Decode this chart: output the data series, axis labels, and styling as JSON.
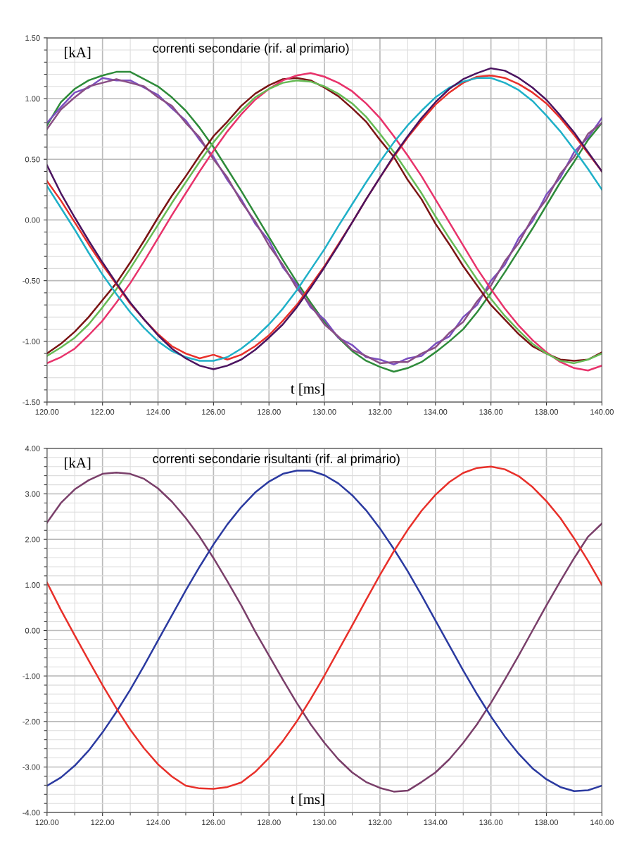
{
  "chart_data": [
    {
      "type": "line",
      "title": "correnti secondarie (rif. al primario)",
      "xlabel": "t [ms]",
      "ylabel": "[kA]",
      "grid": true,
      "marker": "none",
      "line_style": "solid",
      "xlim": [
        120,
        140
      ],
      "ylim": [
        -1.5,
        1.5
      ],
      "xticks": [
        {
          "value": 120,
          "label": "120.00"
        },
        {
          "value": 121,
          "label": null
        },
        {
          "value": 122,
          "label": "122.00"
        },
        {
          "value": 123,
          "label": null
        },
        {
          "value": 124,
          "label": "124.00"
        },
        {
          "value": 125,
          "label": null
        },
        {
          "value": 126,
          "label": "126.00"
        },
        {
          "value": 127,
          "label": null
        },
        {
          "value": 128,
          "label": "128.00"
        },
        {
          "value": 129,
          "label": null
        },
        {
          "value": 130,
          "label": "130.00"
        },
        {
          "value": 131,
          "label": null
        },
        {
          "value": 132,
          "label": "132.00"
        },
        {
          "value": 133,
          "label": null
        },
        {
          "value": 134,
          "label": "134.00"
        },
        {
          "value": 135,
          "label": null
        },
        {
          "value": 136,
          "label": "136.00"
        },
        {
          "value": 137,
          "label": null
        },
        {
          "value": 138,
          "label": "138.00"
        },
        {
          "value": 139,
          "label": null
        },
        {
          "value": 140,
          "label": "140.00"
        }
      ],
      "yticks": [
        {
          "value": -1.5,
          "label": "-1.50"
        },
        {
          "value": -1.4,
          "label": null
        },
        {
          "value": -1.3,
          "label": null
        },
        {
          "value": -1.2,
          "label": null
        },
        {
          "value": -1.1,
          "label": null
        },
        {
          "value": -1.0,
          "label": "-1.00"
        },
        {
          "value": -0.9,
          "label": null
        },
        {
          "value": -0.8,
          "label": null
        },
        {
          "value": -0.7,
          "label": null
        },
        {
          "value": -0.6,
          "label": null
        },
        {
          "value": -0.5,
          "label": "-0.50"
        },
        {
          "value": -0.4,
          "label": null
        },
        {
          "value": -0.3,
          "label": null
        },
        {
          "value": -0.2,
          "label": null
        },
        {
          "value": -0.1,
          "label": null
        },
        {
          "value": 0,
          "label": "0.00"
        },
        {
          "value": 0.1,
          "label": null
        },
        {
          "value": 0.2,
          "label": null
        },
        {
          "value": 0.3,
          "label": null
        },
        {
          "value": 0.4,
          "label": null
        },
        {
          "value": 0.5,
          "label": "0.50"
        },
        {
          "value": 0.6,
          "label": null
        },
        {
          "value": 0.7,
          "label": null
        },
        {
          "value": 0.8,
          "label": null
        },
        {
          "value": 0.9,
          "label": null
        },
        {
          "value": 1.0,
          "label": "1.00"
        },
        {
          "value": 1.1,
          "label": null
        },
        {
          "value": 1.2,
          "label": null
        },
        {
          "value": 1.3,
          "label": null
        },
        {
          "value": 1.4,
          "label": null
        },
        {
          "value": 1.5,
          "label": "1.50"
        }
      ],
      "x": [
        120,
        120.5,
        121,
        121.5,
        122,
        122.5,
        123,
        123.5,
        124,
        124.5,
        125,
        125.5,
        126,
        126.5,
        127,
        127.5,
        128,
        128.5,
        129,
        129.5,
        130,
        130.5,
        131,
        131.5,
        132,
        132.5,
        133,
        133.5,
        134,
        134.5,
        135,
        135.5,
        136,
        136.5,
        137,
        137.5,
        138,
        138.5,
        139,
        139.5,
        140
      ],
      "series": [
        {
          "color": "#2e8b3a",
          "values": [
            0.78,
            0.97,
            1.08,
            1.15,
            1.19,
            1.22,
            1.22,
            1.16,
            1.1,
            1.01,
            0.9,
            0.76,
            0.6,
            0.42,
            0.24,
            0.05,
            -0.14,
            -0.33,
            -0.51,
            -0.68,
            -0.84,
            -0.97,
            -1.08,
            -1.16,
            -1.21,
            -1.25,
            -1.22,
            -1.17,
            -1.09,
            -1.0,
            -0.9,
            -0.76,
            -0.6,
            -0.43,
            -0.25,
            -0.07,
            0.12,
            0.31,
            0.48,
            0.66,
            0.8
          ]
        },
        {
          "color": "#7b4fc0",
          "values": [
            0.8,
            0.93,
            1.05,
            1.09,
            1.17,
            1.15,
            1.15,
            1.09,
            1.03,
            0.92,
            0.82,
            0.66,
            0.52,
            0.33,
            0.17,
            -0.03,
            -0.17,
            -0.39,
            -0.53,
            -0.72,
            -0.82,
            -0.97,
            -1.03,
            -1.13,
            -1.15,
            -1.19,
            -1.14,
            -1.12,
            -1.02,
            -0.96,
            -0.8,
            -0.7,
            -0.5,
            -0.37,
            -0.15,
            -0.01,
            0.21,
            0.35,
            0.56,
            0.68,
            0.84
          ]
        },
        {
          "color": "#8a4f86",
          "values": [
            0.75,
            0.91,
            1.01,
            1.1,
            1.13,
            1.16,
            1.13,
            1.1,
            1.01,
            0.94,
            0.8,
            0.68,
            0.5,
            0.35,
            0.15,
            -0.01,
            -0.21,
            -0.37,
            -0.56,
            -0.7,
            -0.86,
            -0.96,
            -1.07,
            -1.12,
            -1.18,
            -1.17,
            -1.17,
            -1.1,
            -1.05,
            -0.93,
            -0.84,
            -0.67,
            -0.54,
            -0.34,
            -0.19,
            0.02,
            0.17,
            0.38,
            0.52,
            0.71,
            0.8
          ]
        },
        {
          "color": "#7a1414",
          "values": [
            -1.1,
            -1.02,
            -0.92,
            -0.8,
            -0.66,
            -0.52,
            -0.35,
            -0.17,
            0.02,
            0.2,
            0.36,
            0.53,
            0.69,
            0.81,
            0.94,
            1.04,
            1.11,
            1.16,
            1.17,
            1.15,
            1.09,
            1.02,
            0.92,
            0.81,
            0.66,
            0.52,
            0.33,
            0.17,
            -0.03,
            -0.2,
            -0.38,
            -0.54,
            -0.7,
            -0.82,
            -0.94,
            -1.04,
            -1.1,
            -1.15,
            -1.16,
            -1.15,
            -1.09
          ]
        },
        {
          "color": "#e8336b",
          "values": [
            -1.18,
            -1.13,
            -1.06,
            -0.95,
            -0.83,
            -0.68,
            -0.52,
            -0.34,
            -0.15,
            0.04,
            0.22,
            0.4,
            0.57,
            0.73,
            0.87,
            0.99,
            1.08,
            1.15,
            1.19,
            1.21,
            1.18,
            1.13,
            1.06,
            0.96,
            0.84,
            0.69,
            0.53,
            0.36,
            0.17,
            -0.02,
            -0.21,
            -0.4,
            -0.57,
            -0.73,
            -0.87,
            -0.99,
            -1.09,
            -1.17,
            -1.22,
            -1.24,
            -1.2
          ]
        },
        {
          "color": "#66bb55",
          "values": [
            -1.12,
            -1.05,
            -0.97,
            -0.86,
            -0.72,
            -0.57,
            -0.4,
            -0.22,
            -0.04,
            0.14,
            0.31,
            0.48,
            0.64,
            0.78,
            0.9,
            1.01,
            1.08,
            1.13,
            1.15,
            1.14,
            1.1,
            1.04,
            0.96,
            0.85,
            0.71,
            0.56,
            0.39,
            0.22,
            0.03,
            -0.15,
            -0.32,
            -0.49,
            -0.65,
            -0.79,
            -0.91,
            -1.02,
            -1.1,
            -1.16,
            -1.18,
            -1.15,
            -1.1
          ]
        },
        {
          "color": "#e8302a",
          "values": [
            0.32,
            0.16,
            -0.02,
            -0.2,
            -0.37,
            -0.53,
            -0.69,
            -0.82,
            -0.94,
            -1.04,
            -1.1,
            -1.14,
            -1.11,
            -1.15,
            -1.11,
            -1.04,
            -0.95,
            -0.83,
            -0.7,
            -0.54,
            -0.38,
            -0.2,
            -0.02,
            0.17,
            0.35,
            0.52,
            0.68,
            0.82,
            0.95,
            1.05,
            1.13,
            1.18,
            1.19,
            1.17,
            1.12,
            1.05,
            0.96,
            0.84,
            0.7,
            0.55,
            0.4
          ]
        },
        {
          "color": "#1fb0c8",
          "values": [
            0.28,
            0.1,
            -0.08,
            -0.27,
            -0.45,
            -0.61,
            -0.76,
            -0.89,
            -1.0,
            -1.08,
            -1.13,
            -1.16,
            -1.16,
            -1.13,
            -1.06,
            -0.97,
            -0.86,
            -0.73,
            -0.58,
            -0.41,
            -0.24,
            -0.05,
            0.13,
            0.31,
            0.48,
            0.64,
            0.78,
            0.9,
            1.01,
            1.09,
            1.14,
            1.17,
            1.17,
            1.13,
            1.07,
            0.98,
            0.86,
            0.73,
            0.58,
            0.42,
            0.25
          ]
        },
        {
          "color": "#4b1460",
          "values": [
            0.45,
            0.22,
            0.02,
            -0.17,
            -0.35,
            -0.52,
            -0.68,
            -0.82,
            -0.95,
            -1.06,
            -1.14,
            -1.2,
            -1.23,
            -1.2,
            -1.15,
            -1.07,
            -0.97,
            -0.86,
            -0.72,
            -0.56,
            -0.39,
            -0.21,
            -0.02,
            0.17,
            0.35,
            0.53,
            0.69,
            0.84,
            0.97,
            1.08,
            1.16,
            1.21,
            1.25,
            1.23,
            1.17,
            1.09,
            0.99,
            0.86,
            0.72,
            0.56,
            0.4
          ]
        }
      ]
    },
    {
      "type": "line",
      "title": "correnti secondarie risultanti (rif. al primario)",
      "xlabel": "t [ms]",
      "ylabel": "[kA]",
      "grid": true,
      "marker": "none",
      "line_style": "solid",
      "xlim": [
        120,
        140
      ],
      "ylim": [
        -4,
        4
      ],
      "xticks": [
        {
          "value": 120,
          "label": "120.00"
        },
        {
          "value": 121,
          "label": null
        },
        {
          "value": 122,
          "label": "122.00"
        },
        {
          "value": 123,
          "label": null
        },
        {
          "value": 124,
          "label": "124.00"
        },
        {
          "value": 125,
          "label": null
        },
        {
          "value": 126,
          "label": "126.00"
        },
        {
          "value": 127,
          "label": null
        },
        {
          "value": 128,
          "label": "128.00"
        },
        {
          "value": 129,
          "label": null
        },
        {
          "value": 130,
          "label": "130.00"
        },
        {
          "value": 131,
          "label": null
        },
        {
          "value": 132,
          "label": "132.00"
        },
        {
          "value": 133,
          "label": null
        },
        {
          "value": 134,
          "label": "134.00"
        },
        {
          "value": 135,
          "label": null
        },
        {
          "value": 136,
          "label": "136.00"
        },
        {
          "value": 137,
          "label": null
        },
        {
          "value": 138,
          "label": "138.00"
        },
        {
          "value": 139,
          "label": null
        },
        {
          "value": 140,
          "label": "140.00"
        }
      ],
      "yticks": [
        {
          "value": -4,
          "label": "-4.00"
        },
        {
          "value": -3.8,
          "label": null
        },
        {
          "value": -3.6,
          "label": null
        },
        {
          "value": -3.4,
          "label": null
        },
        {
          "value": -3.2,
          "label": null
        },
        {
          "value": -3,
          "label": "-3.00"
        },
        {
          "value": -2.8,
          "label": null
        },
        {
          "value": -2.6,
          "label": null
        },
        {
          "value": -2.4,
          "label": null
        },
        {
          "value": -2.2,
          "label": null
        },
        {
          "value": -2,
          "label": "-2.00"
        },
        {
          "value": -1.8,
          "label": null
        },
        {
          "value": -1.6,
          "label": null
        },
        {
          "value": -1.4,
          "label": null
        },
        {
          "value": -1.2,
          "label": null
        },
        {
          "value": -1,
          "label": "-1.00"
        },
        {
          "value": -0.8,
          "label": null
        },
        {
          "value": -0.6,
          "label": null
        },
        {
          "value": -0.4,
          "label": null
        },
        {
          "value": -0.2,
          "label": null
        },
        {
          "value": 0,
          "label": "0.00"
        },
        {
          "value": 0.2,
          "label": null
        },
        {
          "value": 0.4,
          "label": null
        },
        {
          "value": 0.6,
          "label": null
        },
        {
          "value": 0.8,
          "label": null
        },
        {
          "value": 1,
          "label": "1.00"
        },
        {
          "value": 1.2,
          "label": null
        },
        {
          "value": 1.4,
          "label": null
        },
        {
          "value": 1.6,
          "label": null
        },
        {
          "value": 1.8,
          "label": null
        },
        {
          "value": 2,
          "label": "2.00"
        },
        {
          "value": 2.2,
          "label": null
        },
        {
          "value": 2.4,
          "label": null
        },
        {
          "value": 2.6,
          "label": null
        },
        {
          "value": 2.8,
          "label": null
        },
        {
          "value": 3,
          "label": "3.00"
        },
        {
          "value": 3.2,
          "label": null
        },
        {
          "value": 3.4,
          "label": null
        },
        {
          "value": 3.6,
          "label": null
        },
        {
          "value": 3.8,
          "label": null
        },
        {
          "value": 4,
          "label": "4.00"
        }
      ],
      "x": [
        120,
        120.5,
        121,
        121.5,
        122,
        122.5,
        123,
        123.5,
        124,
        124.5,
        125,
        125.5,
        126,
        126.5,
        127,
        127.5,
        128,
        128.5,
        129,
        129.5,
        130,
        130.5,
        131,
        131.5,
        132,
        132.5,
        133,
        133.5,
        134,
        134.5,
        135,
        135.5,
        136,
        136.5,
        137,
        137.5,
        138,
        138.5,
        139,
        139.5,
        140
      ],
      "series": [
        {
          "color": "#7a3f6a",
          "values": [
            2.37,
            2.8,
            3.1,
            3.3,
            3.44,
            3.47,
            3.44,
            3.33,
            3.12,
            2.83,
            2.47,
            2.06,
            1.59,
            1.08,
            0.55,
            -0.02,
            -0.55,
            -1.08,
            -1.59,
            -2.06,
            -2.47,
            -2.83,
            -3.12,
            -3.33,
            -3.46,
            -3.54,
            -3.52,
            -3.33,
            -3.12,
            -2.83,
            -2.47,
            -2.06,
            -1.59,
            -1.08,
            -0.55,
            0,
            0.55,
            1.08,
            1.59,
            2.06,
            2.35
          ]
        },
        {
          "color": "#2b3aa0",
          "values": [
            -3.41,
            -3.23,
            -2.97,
            -2.64,
            -2.24,
            -1.79,
            -1.3,
            -0.77,
            -0.22,
            0.33,
            0.88,
            1.4,
            1.89,
            2.33,
            2.71,
            3.03,
            3.27,
            3.44,
            3.51,
            3.51,
            3.41,
            3.23,
            2.97,
            2.64,
            2.24,
            1.79,
            1.3,
            0.77,
            0.22,
            -0.33,
            -0.88,
            -1.4,
            -1.89,
            -2.33,
            -2.71,
            -3.03,
            -3.27,
            -3.44,
            -3.53,
            -3.51,
            -3.41
          ]
        },
        {
          "color": "#e8302a",
          "values": [
            1.05,
            0.45,
            -0.11,
            -0.66,
            -1.2,
            -1.71,
            -2.18,
            -2.59,
            -2.94,
            -3.21,
            -3.41,
            -3.47,
            -3.48,
            -3.44,
            -3.34,
            -3.11,
            -2.8,
            -2.43,
            -2.0,
            -1.51,
            -0.99,
            -0.44,
            0.11,
            0.67,
            1.22,
            1.74,
            2.21,
            2.63,
            2.98,
            3.26,
            3.46,
            3.57,
            3.6,
            3.54,
            3.39,
            3.15,
            2.84,
            2.47,
            2.02,
            1.53,
            1.0
          ]
        }
      ]
    }
  ]
}
